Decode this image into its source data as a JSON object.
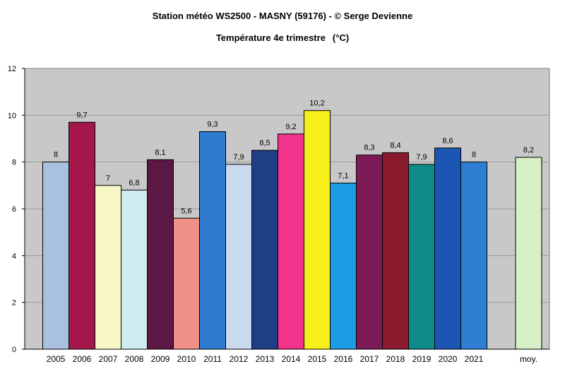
{
  "chart_data": {
    "type": "bar",
    "title": "Station météo WS2500 - MASNY (59176) - © Serge Devienne",
    "subtitle": "Température 4e trimestre",
    "unit": "(°C)",
    "categories": [
      "2005",
      "2006",
      "2007",
      "2008",
      "2009",
      "2010",
      "2011",
      "2012",
      "2013",
      "2014",
      "2015",
      "2016",
      "2017",
      "2018",
      "2019",
      "2020",
      "2021",
      "moy."
    ],
    "values": [
      8,
      9.7,
      7,
      6.8,
      8.1,
      5.6,
      9.3,
      7.9,
      8.5,
      9.2,
      10.2,
      7.1,
      8.3,
      8.4,
      7.9,
      8.6,
      8,
      8.2
    ],
    "value_labels": [
      "8",
      "9,7",
      "7",
      "6,8",
      "8,1",
      "5,6",
      "9,3",
      "7,9",
      "8,5",
      "9,2",
      "10,2",
      "7,1",
      "8,3",
      "8,4",
      "7,9",
      "8,6",
      "8",
      "8,2"
    ],
    "colors": [
      "#a9c0de",
      "#a3174a",
      "#f8f7c8",
      "#cfecf1",
      "#5c1844",
      "#ee9088",
      "#2f7bd0",
      "#c9d9ee",
      "#1e3f86",
      "#f2338c",
      "#f7ef1a",
      "#1d9be3",
      "#7b1a55",
      "#8a1b2f",
      "#0f8a8a",
      "#1b56b4",
      "#2e7fd4",
      "#d7f0c8"
    ],
    "ylim": [
      0,
      12
    ],
    "yticks": [
      "0",
      "2",
      "4",
      "6",
      "8",
      "10",
      "12"
    ],
    "grid": true,
    "legend": "none",
    "plot_background": "#c8c8c8",
    "xlabel": "",
    "ylabel": ""
  }
}
